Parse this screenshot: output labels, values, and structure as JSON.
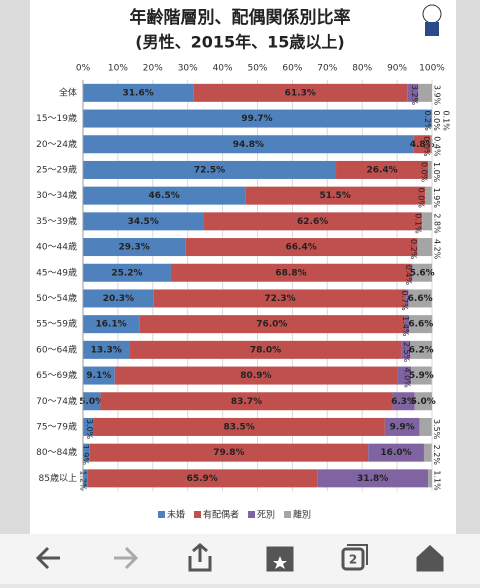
{
  "chart_data": {
    "type": "stacked_barh",
    "title": "年齢階層別、配偶関係別比率",
    "subtitle": "(男性、2015年、15歳以上)",
    "categories": [
      "全体",
      "15〜19歳",
      "20〜24歳",
      "25〜29歳",
      "30〜34歳",
      "35〜39歳",
      "40〜44歳",
      "45〜49歳",
      "50〜54歳",
      "55〜59歳",
      "60〜64歳",
      "65〜69歳",
      "70〜74歳",
      "75〜79歳",
      "80〜84歳",
      "85歳以上"
    ],
    "series": [
      {
        "name": "未婚",
        "color": "#4f81bd",
        "values": [
          31.6,
          99.7,
          94.8,
          72.5,
          46.5,
          34.5,
          29.3,
          25.2,
          20.3,
          16.1,
          13.3,
          9.1,
          5.0,
          3.0,
          1.9,
          1.2
        ],
        "value_labels": [
          "31.6%",
          "99.7%",
          "94.8%",
          "72.5%",
          "46.5%",
          "34.5%",
          "29.3%",
          "25.2%",
          "20.3%",
          "16.1%",
          "13.3%",
          "9.1%",
          "5.0%",
          "3.0%",
          "1.9%",
          "1.2%"
        ]
      },
      {
        "name": "有配偶者",
        "color": "#c0504d",
        "values": [
          61.3,
          0.2,
          4.8,
          26.4,
          51.5,
          62.6,
          66.4,
          68.8,
          72.3,
          76.0,
          78.0,
          80.9,
          83.7,
          83.5,
          79.8,
          65.9
        ],
        "value_labels": [
          "61.3%",
          "0.2%",
          "4.8%",
          "26.4%",
          "51.5%",
          "62.6%",
          "66.4%",
          "68.8%",
          "72.3%",
          "76.0%",
          "78.0%",
          "80.9%",
          "83.7%",
          "83.5%",
          "79.8%",
          "65.9%"
        ]
      },
      {
        "name": "死別",
        "color": "#8064a2",
        "values": [
          3.2,
          0.0,
          0.0,
          0.0,
          0.0,
          0.1,
          0.2,
          0.4,
          0.7,
          1.4,
          2.5,
          4.0,
          6.3,
          9.9,
          16.0,
          31.8
        ],
        "value_labels": [
          "3.2%",
          "0.0%",
          "0.0%",
          "0.0%",
          "0.0%",
          "0.1%",
          "0.2%",
          "0.4%",
          "0.7%",
          "1.4%",
          "2.5%",
          "4.0%",
          "6.3%",
          "9.9%",
          "16.0%",
          "31.8%"
        ]
      },
      {
        "name": "離別",
        "color": "#a5a5a5",
        "values": [
          3.9,
          0.1,
          0.4,
          1.0,
          1.9,
          2.8,
          4.2,
          5.6,
          6.6,
          6.6,
          6.2,
          5.9,
          5.0,
          3.5,
          2.2,
          1.1
        ],
        "value_labels": [
          "3.9%",
          "0.1%",
          "0.4%",
          "1.0%",
          "1.9%",
          "2.8%",
          "4.2%",
          "5.6%",
          "6.6%",
          "6.6%",
          "6.2%",
          "5.9%",
          "5.0%",
          "3.5%",
          "2.2%",
          "1.1%"
        ]
      }
    ],
    "xlim": [
      0,
      100
    ],
    "xticks": [
      {
        "value": 0,
        "label": "0%"
      },
      {
        "value": 10,
        "label": "10%"
      },
      {
        "value": 20,
        "label": "20%"
      },
      {
        "value": 30,
        "label": "30%"
      },
      {
        "value": 40,
        "label": "40%"
      },
      {
        "value": 50,
        "label": "50%"
      },
      {
        "value": 60,
        "label": "60%"
      },
      {
        "value": 70,
        "label": "70%"
      },
      {
        "value": 80,
        "label": "80%"
      },
      {
        "value": 90,
        "label": "90%"
      },
      {
        "value": 100,
        "label": "100%"
      }
    ],
    "grid": true,
    "legend": "bottom"
  },
  "toolbar": {
    "tabs": "2"
  }
}
